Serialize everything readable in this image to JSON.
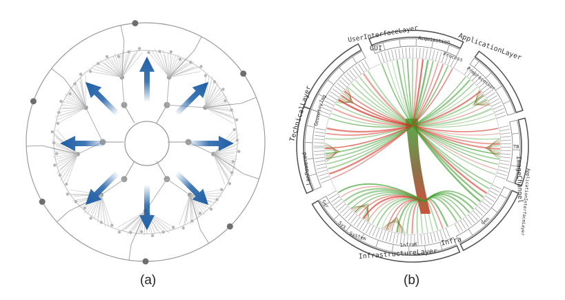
{
  "panel_a": {
    "caption": "(a)",
    "arrow_color": "#1f5fa6"
  },
  "panel_b": {
    "caption": "(b)",
    "layers": {
      "user_interface": "UserInterfaceLayer",
      "application": "ApplicationLayer",
      "technical": "TechnicalLayer",
      "infrastructure": "InfrastructureLayer",
      "image_channel": "ImageChannel"
    },
    "modules": {
      "gui": "GUI",
      "acquisition": "Acquisition",
      "process": "Process",
      "preprocess": "Preprocessor",
      "application_interface": "ApplicationInterfaceLayer",
      "infra": "Infra",
      "infrak": "InfraK",
      "system": "System",
      "ser": "Ser",
      "sys": "Sys",
      "gen": "Gen",
      "geometry": "Geometry",
      "lanpowered": "LanPowered",
      "img": "Img",
      "tb": "TB"
    },
    "colors": {
      "green": "#3f9f2f",
      "red": "#d42a1c",
      "brown": "#7a5a28"
    }
  }
}
